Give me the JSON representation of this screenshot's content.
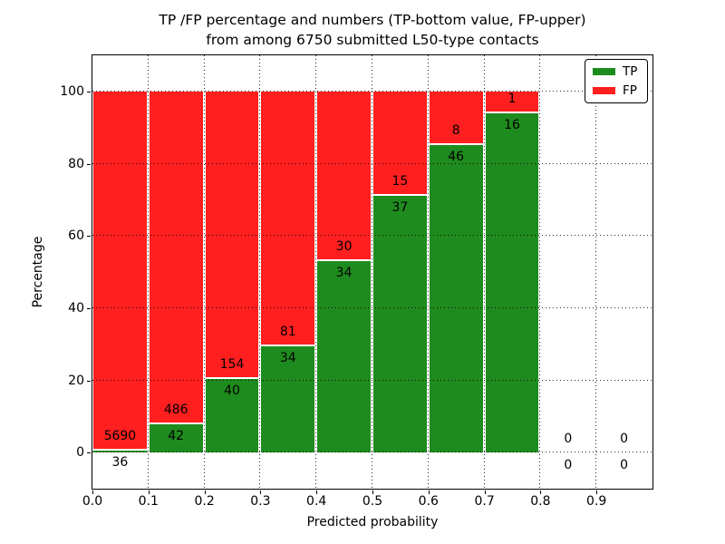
{
  "chart_data": {
    "type": "bar",
    "subtype": "stacked-percentage",
    "title_line1": "TP /FP percentage and numbers (TP-bottom value, FP-upper)",
    "title_line2": "from among 6750 submitted L50-type contacts",
    "xlabel": "Predicted probability",
    "ylabel": "Percentage",
    "xlim": [
      0.0,
      1.0
    ],
    "ylim": [
      -10,
      110
    ],
    "grid": "dotted",
    "xticks": [
      "0.0",
      "0.1",
      "0.2",
      "0.3",
      "0.4",
      "0.5",
      "0.6",
      "0.7",
      "0.8",
      "0.9"
    ],
    "yticks": [
      0,
      20,
      40,
      60,
      80,
      100
    ],
    "bin_edges": [
      0.0,
      0.1,
      0.2,
      0.3,
      0.4,
      0.5,
      0.6,
      0.7,
      0.8,
      0.9,
      1.0
    ],
    "categories": [
      "0.0-0.1",
      "0.1-0.2",
      "0.2-0.3",
      "0.3-0.4",
      "0.4-0.5",
      "0.5-0.6",
      "0.6-0.7",
      "0.7-0.8",
      "0.8-0.9",
      "0.9-1.0"
    ],
    "series": [
      {
        "name": "TP",
        "values": [
          36,
          42,
          40,
          34,
          34,
          37,
          46,
          16,
          0,
          0
        ]
      },
      {
        "name": "FP",
        "values": [
          5690,
          486,
          154,
          81,
          30,
          15,
          8,
          1,
          0,
          0
        ]
      }
    ],
    "total_submitted": 6750,
    "legend": {
      "position": "upper right",
      "entries": [
        {
          "label": "TP",
          "color": "#1e8b1e"
        },
        {
          "label": "FP",
          "color": "#ff1f1f"
        }
      ]
    },
    "annotation_rule": "TP count below green/red boundary, FP count above boundary"
  }
}
